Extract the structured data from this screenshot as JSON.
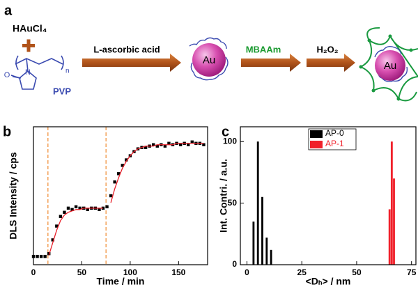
{
  "scheme": {
    "panel_label": "a",
    "reactant": "HAuCl₄",
    "polymer_repeat": "n",
    "atom_n": "N",
    "atom_o": "O",
    "polymer_name": "PVP",
    "step1": "L-ascorbic acid",
    "core1": "Au",
    "step2": "MBAAm",
    "step3": "H₂O₂",
    "core2": "Au"
  },
  "chart_data": [
    {
      "type": "line",
      "panel_label": "b",
      "xlabel": "Time / min",
      "ylabel": "DLS Intensity / cps",
      "x": [
        0,
        4,
        8,
        12,
        16,
        20,
        24,
        28,
        32,
        36,
        40,
        44,
        48,
        52,
        56,
        60,
        64,
        68,
        72,
        76,
        80,
        84,
        88,
        92,
        96,
        100,
        104,
        108,
        112,
        116,
        120,
        124,
        128,
        132,
        136,
        140,
        144,
        148,
        152,
        156,
        160,
        164,
        168,
        172,
        176
      ],
      "xlim": [
        0,
        180
      ],
      "xticks": [
        0,
        50,
        100,
        150
      ],
      "ylim": [
        0,
        100
      ],
      "markers": [
        15,
        75
      ],
      "marker_color": "#f08a30",
      "series": [
        {
          "color": "#000000",
          "style": "points",
          "values": [
            6,
            6,
            6,
            6,
            8,
            18,
            28,
            35,
            38,
            41,
            40,
            42,
            41,
            41,
            40,
            41,
            41,
            40,
            41,
            42,
            50,
            60,
            66,
            72,
            76,
            79,
            82,
            84,
            85,
            85,
            86,
            87,
            86,
            87,
            86,
            88,
            87,
            88,
            87,
            88,
            87,
            89,
            88,
            88,
            87
          ]
        },
        {
          "color": "#e8202a",
          "style": "line",
          "values": [
            null,
            null,
            null,
            null,
            7,
            16,
            25,
            32,
            36,
            38,
            39,
            40,
            40,
            41,
            41,
            41,
            41,
            41,
            41,
            null,
            45,
            55,
            63,
            70,
            75,
            79,
            82,
            84,
            85,
            86,
            86,
            86,
            87,
            87,
            87,
            87,
            87,
            88,
            88,
            88,
            88,
            88,
            88,
            88,
            88
          ]
        }
      ]
    },
    {
      "type": "bar",
      "panel_label": "c",
      "xlabel": "<Dₕ> / nm",
      "ylabel": "Int. Contri. / a.u.",
      "xlim": [
        -3,
        77
      ],
      "xticks": [
        0,
        25,
        50,
        75
      ],
      "ylim": [
        0,
        112
      ],
      "yticks": [
        0,
        50,
        100
      ],
      "series": [
        {
          "name": "AP-0",
          "color": "#000000",
          "x": [
            3,
            5,
            7,
            9,
            11
          ],
          "values": [
            35,
            100,
            55,
            22,
            12
          ]
        },
        {
          "name": "AP-1",
          "color": "#f0202a",
          "x": [
            65,
            66,
            67
          ],
          "values": [
            45,
            100,
            70
          ]
        }
      ]
    }
  ]
}
